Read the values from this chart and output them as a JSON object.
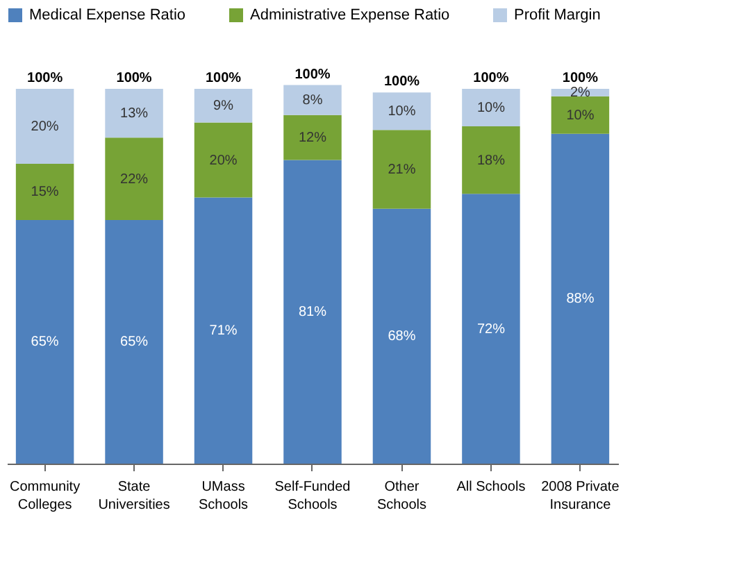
{
  "chart_data": {
    "type": "bar",
    "stacked": true,
    "legend": "top",
    "grid": false,
    "categories": [
      "Community\nColleges",
      "State\nUniversities",
      "UMass\nSchools",
      "Self-Funded\nSchools",
      "Other\nSchools",
      "All Schools",
      "2008 Private\nInsurance"
    ],
    "series": [
      {
        "name": "Medical Expense Ratio",
        "color": "#4f81bd",
        "values": [
          65,
          65,
          71,
          81,
          68,
          72,
          88
        ],
        "value_labels": [
          "65%",
          "65%",
          "71%",
          "81%",
          "68%",
          "72%",
          "88%"
        ]
      },
      {
        "name": "Administrative Expense Ratio",
        "color": "#77a336",
        "values": [
          15,
          22,
          20,
          12,
          21,
          18,
          10
        ],
        "value_labels": [
          "15%",
          "22%",
          "20%",
          "12%",
          "21%",
          "18%",
          "10%"
        ]
      },
      {
        "name": "Profit Margin",
        "color": "#b9cde5",
        "values": [
          20,
          13,
          9,
          8,
          10,
          10,
          2
        ],
        "value_labels": [
          "20%",
          "13%",
          "9%",
          "8%",
          "10%",
          "10%",
          "2%"
        ]
      }
    ],
    "totals": [
      "100%",
      "100%",
      "100%",
      "100%",
      "100%",
      "100%",
      "100%"
    ]
  }
}
